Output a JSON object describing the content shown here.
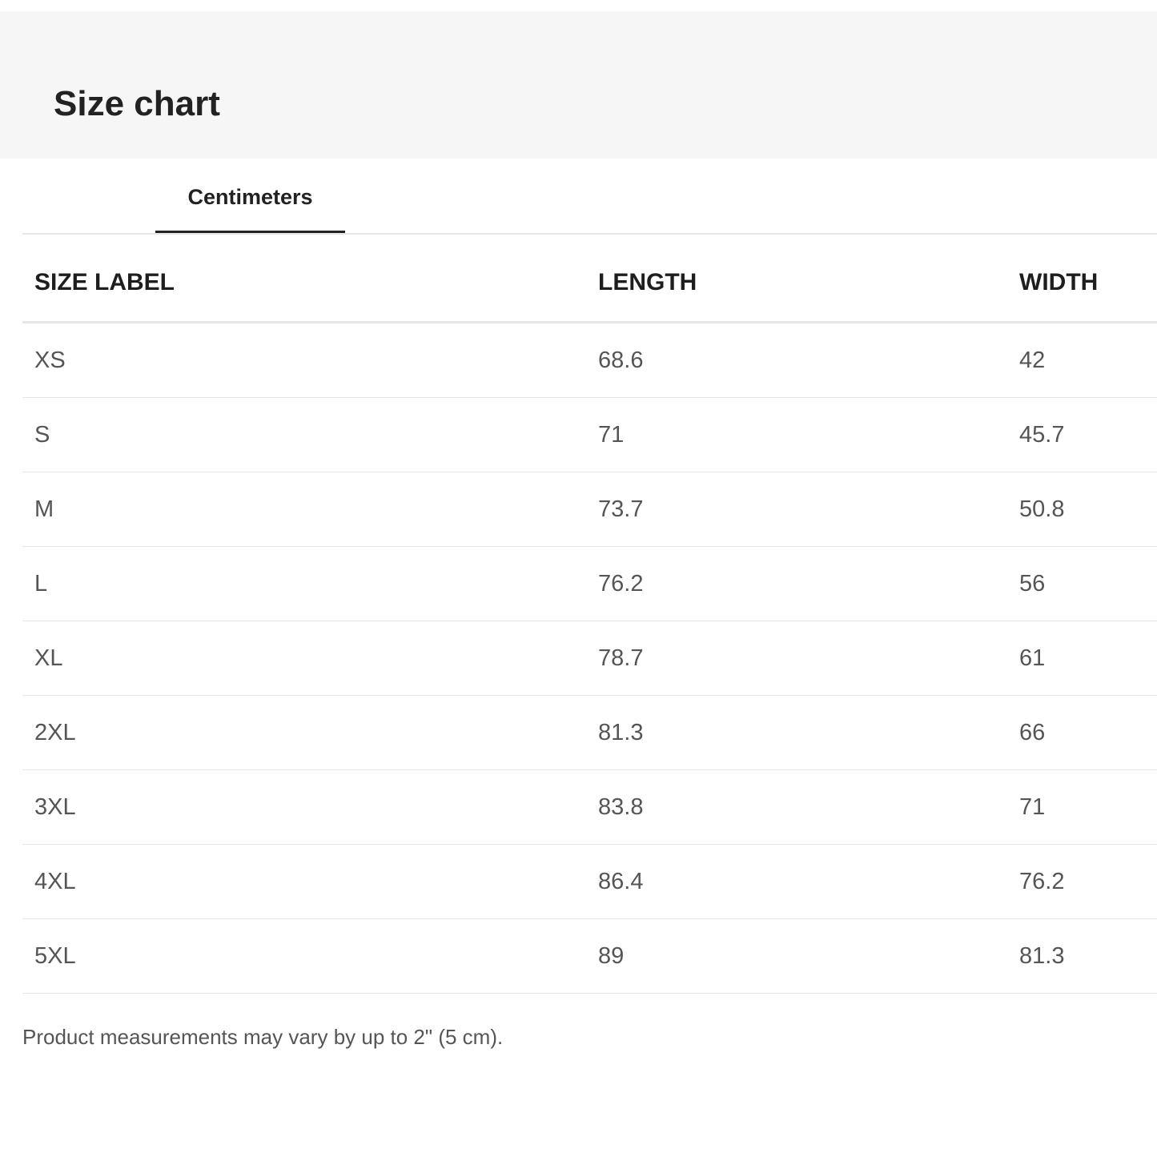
{
  "title": "Size chart",
  "tabs": [
    {
      "label": "Centimeters",
      "active": true
    }
  ],
  "table": {
    "columns": [
      "SIZE LABEL",
      "LENGTH",
      "WIDTH"
    ],
    "rows": [
      [
        "XS",
        "68.6",
        "42"
      ],
      [
        "S",
        "71",
        "45.7"
      ],
      [
        "M",
        "73.7",
        "50.8"
      ],
      [
        "L",
        "76.2",
        "56"
      ],
      [
        "XL",
        "78.7",
        "61"
      ],
      [
        "2XL",
        "81.3",
        "66"
      ],
      [
        "3XL",
        "83.8",
        "71"
      ],
      [
        "4XL",
        "86.4",
        "76.2"
      ],
      [
        "5XL",
        "89",
        "81.3"
      ]
    ]
  },
  "note": "Product measurements may vary by up to 2\" (5 cm)."
}
